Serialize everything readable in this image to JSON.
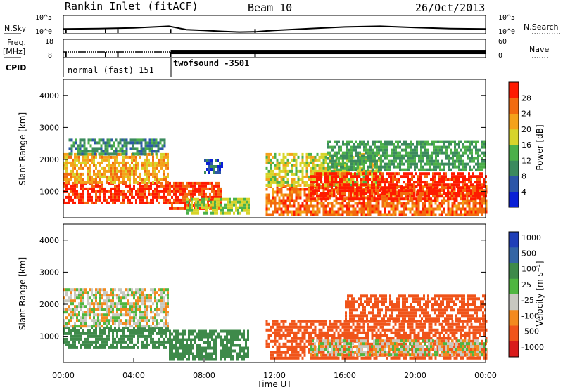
{
  "header": {
    "title": "Rankin Inlet (fitACF)",
    "beam": "Beam 10",
    "date": "26/Oct/2013"
  },
  "left_labels": {
    "nsky": "N.Sky",
    "freq": "Freq.",
    "freq_unit": "[MHz]",
    "cpid": "CPID"
  },
  "right_labels": {
    "nsearch": "N.Search",
    "nave": "Nave"
  },
  "colors": {
    "power": [
      "#0a1fd6",
      "#2c56a8",
      "#3b8a5e",
      "#4bb049",
      "#d7d42a",
      "#f4a21a",
      "#f26b0f",
      "#ff1a00"
    ],
    "velocity": [
      "#d91c1c",
      "#f0541a",
      "#f38a1e",
      "#c8c8c0",
      "#4fb640",
      "#3e8a4a",
      "#3365a5",
      "#1f3fb8"
    ]
  },
  "chart_data": [
    {
      "type": "line",
      "panel": "noise",
      "yticks_left": [
        "10^5",
        "10^0"
      ],
      "yticks_right": [
        "10^5",
        "10^0"
      ],
      "series": [
        {
          "name": "N.Sky",
          "x": [
            0,
            2,
            4,
            6,
            7,
            8,
            9,
            10,
            11,
            12,
            14,
            16,
            18,
            20,
            22,
            24
          ],
          "values": [
            1.2,
            1.3,
            1.5,
            2,
            1.0,
            0.8,
            0.5,
            0.3,
            0.4,
            0.8,
            1.3,
            1.8,
            2.0,
            1.6,
            1.3,
            1.2
          ]
        }
      ],
      "dips_hours": [
        0.15,
        2.4,
        3.1,
        6.1,
        10.9
      ]
    },
    {
      "type": "line",
      "panel": "freq_nave",
      "yticks_left": [
        "18",
        "8"
      ],
      "yticks_right": [
        "60",
        "0"
      ],
      "series": [
        {
          "name": "Freq.",
          "x": [
            0,
            6,
            6.1,
            24
          ],
          "values": [
            10.9,
            10.9,
            10.9,
            10.9
          ]
        }
      ],
      "dips_hours": [
        0.15,
        2.4,
        3.1,
        6.1,
        10.9
      ]
    },
    {
      "type": "table",
      "panel": "cpid",
      "segments": [
        {
          "label": "normal (fast) 151",
          "start_hour": 0,
          "end_hour": 6.1
        },
        {
          "label": "twofsound -3501",
          "start_hour": 6.1,
          "end_hour": 24
        }
      ]
    },
    {
      "type": "heatmap",
      "panel": "power",
      "ylabel": "Slant Range [km]",
      "yticks": [
        "1000",
        "2000",
        "3000",
        "4000"
      ],
      "ylim": [
        180,
        4500
      ],
      "colorbar_label": "Power [dB]",
      "colorbar_ticks": [
        "4",
        "8",
        "12",
        "16",
        "20",
        "24",
        "28"
      ],
      "clim": [
        0,
        32
      ],
      "patches": [
        {
          "t0": 0.0,
          "t1": 6.0,
          "r0": 600,
          "r1": 1300,
          "level": 30
        },
        {
          "t0": 0.0,
          "t1": 6.0,
          "r0": 1300,
          "r1": 2200,
          "level": 22
        },
        {
          "t0": 0.3,
          "t1": 5.8,
          "r0": 2200,
          "r1": 2650,
          "level": 10
        },
        {
          "t0": 6.0,
          "t1": 9.0,
          "r0": 500,
          "r1": 1300,
          "level": 28
        },
        {
          "t0": 7.0,
          "t1": 10.5,
          "r0": 300,
          "r1": 800,
          "level": 16
        },
        {
          "t0": 8.0,
          "t1": 9.0,
          "r0": 1600,
          "r1": 2000,
          "level": 6
        },
        {
          "t0": 11.5,
          "t1": 24.0,
          "r0": 300,
          "r1": 1200,
          "level": 26
        },
        {
          "t0": 11.5,
          "t1": 18.0,
          "r0": 1200,
          "r1": 2200,
          "level": 18
        },
        {
          "t0": 14.0,
          "t1": 24.0,
          "r0": 800,
          "r1": 1600,
          "level": 30
        },
        {
          "t0": 15.0,
          "t1": 24.0,
          "r0": 1700,
          "r1": 2600,
          "level": 12
        }
      ]
    },
    {
      "type": "heatmap",
      "panel": "velocity",
      "ylabel": "Slant Range [km]",
      "yticks": [
        "1000",
        "2000",
        "3000",
        "4000"
      ],
      "ylim": [
        180,
        4500
      ],
      "xlabel": "Time UT",
      "xticks": [
        "00:00",
        "04:00",
        "08:00",
        "12:00",
        "16:00",
        "20:00",
        "00:00"
      ],
      "xlim_hours": [
        0,
        24
      ],
      "colorbar_label": "Velocity [m s⁻¹]",
      "colorbar_ticks": [
        "1000",
        "500",
        "100",
        "25",
        "-25",
        "-100",
        "-500",
        "-1000"
      ],
      "patches": [
        {
          "t0": 0.0,
          "t1": 6.0,
          "r0": 600,
          "r1": 1300,
          "velocity": 200
        },
        {
          "t0": 0.0,
          "t1": 6.0,
          "r0": 1300,
          "r1": 2500,
          "velocity": 0
        },
        {
          "t0": 6.0,
          "t1": 10.5,
          "r0": 300,
          "r1": 1200,
          "velocity": 200
        },
        {
          "t0": 11.5,
          "t1": 24.0,
          "r0": 300,
          "r1": 1500,
          "velocity": -300
        },
        {
          "t0": 14.0,
          "t1": 24.0,
          "r0": 400,
          "r1": 900,
          "velocity": 0
        },
        {
          "t0": 16.0,
          "t1": 24.0,
          "r0": 1500,
          "r1": 2300,
          "velocity": -300
        }
      ]
    }
  ]
}
